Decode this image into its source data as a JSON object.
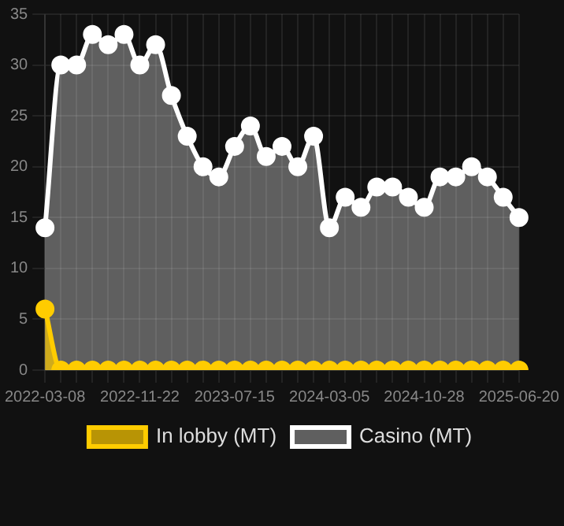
{
  "chart_data": {
    "type": "area",
    "categories": [
      "2022-03-08",
      null,
      null,
      null,
      null,
      null,
      "2022-11-22",
      null,
      null,
      null,
      null,
      null,
      "2023-07-15",
      null,
      null,
      null,
      null,
      null,
      "2024-03-05",
      null,
      null,
      null,
      null,
      null,
      "2024-10-28",
      null,
      null,
      null,
      null,
      null,
      "2025-06-20"
    ],
    "series": [
      {
        "name": "In lobby (MT)",
        "color": "#ffcc00",
        "values": [
          6,
          0,
          0,
          0,
          0,
          0,
          0,
          0,
          0,
          0,
          0,
          0,
          0,
          0,
          0,
          0,
          0,
          0,
          0,
          0,
          0,
          0,
          0,
          0,
          0,
          0,
          0,
          0,
          0,
          0,
          0
        ]
      },
      {
        "name": "Casino (MT)",
        "color": "#ffffff",
        "values": [
          14,
          30,
          30,
          33,
          32,
          33,
          30,
          32,
          27,
          23,
          20,
          19,
          22,
          24,
          21,
          22,
          20,
          23,
          14,
          17,
          16,
          18,
          18,
          17,
          16,
          19,
          19,
          20,
          19,
          17,
          15
        ]
      }
    ],
    "ylim": [
      0,
      35
    ],
    "yticks": [
      0,
      5,
      10,
      15,
      20,
      25,
      30,
      35
    ],
    "grid": true,
    "legend": "bottom",
    "marker": "circle",
    "line_style": "solid"
  }
}
